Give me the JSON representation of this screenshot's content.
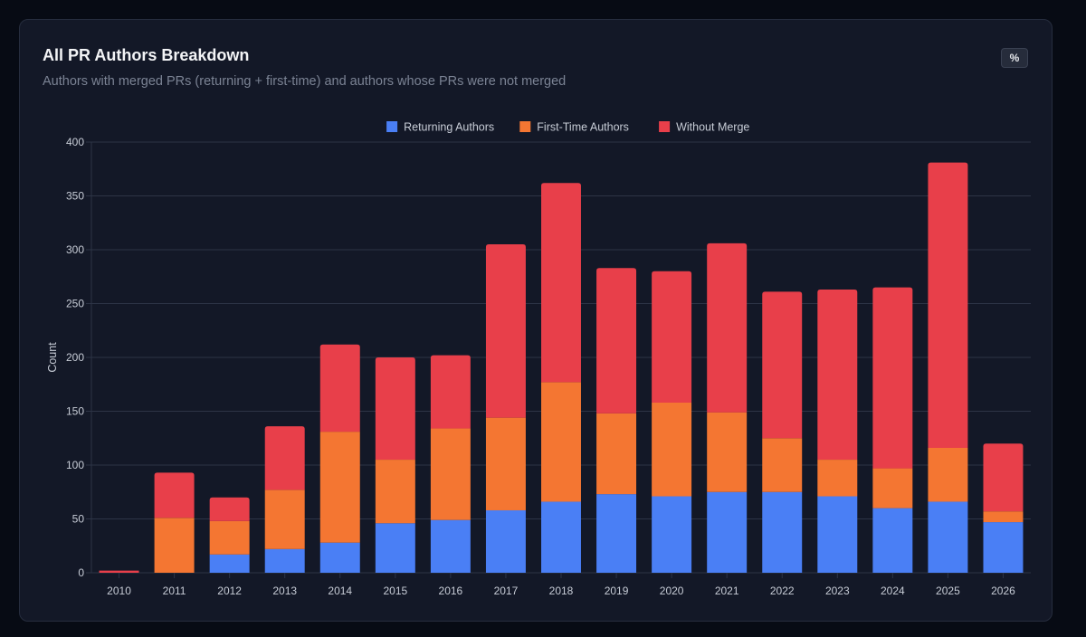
{
  "header": {
    "title": "All PR Authors Breakdown",
    "subtitle": "Authors with merged PRs (returning + first-time) and authors whose PRs were not merged",
    "toggle_label": "%"
  },
  "colors": {
    "returning": "#4a7ff5",
    "first_time": "#f47632",
    "without_merge": "#e83f4a",
    "grid": "#2d3446",
    "tick_text": "#c7ccd6"
  },
  "chart_data": {
    "type": "bar",
    "stacked": true,
    "title": "All PR Authors Breakdown",
    "xlabel": "",
    "ylabel": "Count",
    "ylim": [
      0,
      400
    ],
    "yticks": [
      0,
      50,
      100,
      150,
      200,
      250,
      300,
      350,
      400
    ],
    "grid": true,
    "legend_position": "top-center",
    "categories": [
      "2010",
      "2011",
      "2012",
      "2013",
      "2014",
      "2015",
      "2016",
      "2017",
      "2018",
      "2019",
      "2020",
      "2021",
      "2022",
      "2023",
      "2024",
      "2025",
      "2026"
    ],
    "series": [
      {
        "name": "Returning Authors",
        "values": [
          0,
          0,
          17,
          22,
          28,
          46,
          49,
          58,
          66,
          73,
          71,
          75,
          75,
          71,
          60,
          66,
          47
        ]
      },
      {
        "name": "First-Time Authors",
        "values": [
          0,
          51,
          31,
          55,
          103,
          59,
          85,
          86,
          111,
          75,
          87,
          74,
          50,
          34,
          37,
          50,
          10
        ]
      },
      {
        "name": "Without Merge",
        "values": [
          2,
          42,
          22,
          59,
          81,
          95,
          68,
          161,
          185,
          135,
          122,
          157,
          136,
          158,
          168,
          265,
          63
        ]
      }
    ]
  }
}
